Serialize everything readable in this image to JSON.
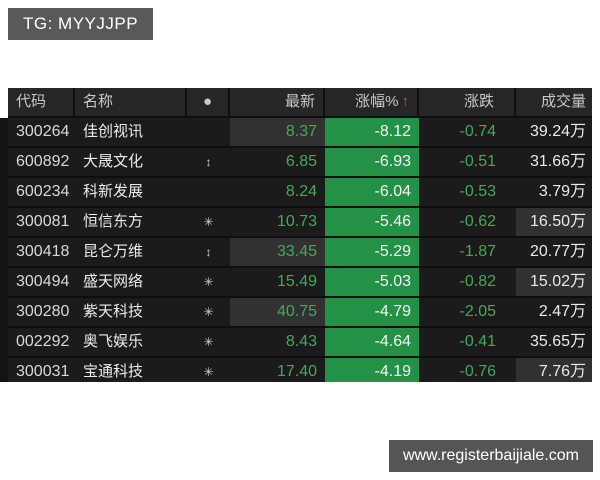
{
  "overlays": {
    "tg_label": "TG: MYYJJPP",
    "watermark": "www.registerbaijiale.com"
  },
  "colors": {
    "page_bg": "#ffffff",
    "table_bg": "#1b1b1b",
    "header_bg": "#262626",
    "row_separator": "#0d0d0d",
    "highlight_cell_bg": "#313131",
    "pct_down_bg": "#239246",
    "down_text_green": "#43a95c",
    "white_text": "#ececec",
    "header_text": "#c9c9c9",
    "sort_arrow_color": "#d4512a",
    "tg_box_bg": "#59595b",
    "watermark_bg": "#555557"
  },
  "table": {
    "sort_arrow": "↑",
    "columns": [
      {
        "key": "code",
        "label": "代码"
      },
      {
        "key": "name",
        "label": "名称"
      },
      {
        "key": "flag",
        "label": "●"
      },
      {
        "key": "last",
        "label": "最新"
      },
      {
        "key": "pct",
        "label": "涨幅%"
      },
      {
        "key": "chg",
        "label": "涨跌"
      },
      {
        "key": "vol",
        "label": "成交量"
      }
    ],
    "rows": [
      {
        "code": "300264",
        "name": "佳创视讯",
        "flag": "",
        "last": "8.37",
        "pct": "-8.12",
        "chg": "-0.74",
        "vol": "39.24万",
        "last_hl": true,
        "vol_hl": false
      },
      {
        "code": "600892",
        "name": "大晟文化",
        "flag": "↕",
        "last": "6.85",
        "pct": "-6.93",
        "chg": "-0.51",
        "vol": "31.66万",
        "last_hl": false,
        "vol_hl": false
      },
      {
        "code": "600234",
        "name": "科新发展",
        "flag": "",
        "last": "8.24",
        "pct": "-6.04",
        "chg": "-0.53",
        "vol": "3.79万",
        "last_hl": false,
        "vol_hl": false
      },
      {
        "code": "300081",
        "name": "恒信东方",
        "flag": "✳",
        "last": "10.73",
        "pct": "-5.46",
        "chg": "-0.62",
        "vol": "16.50万",
        "last_hl": false,
        "vol_hl": true
      },
      {
        "code": "300418",
        "name": "昆仑万维",
        "flag": "↕",
        "last": "33.45",
        "pct": "-5.29",
        "chg": "-1.87",
        "vol": "20.77万",
        "last_hl": true,
        "vol_hl": false
      },
      {
        "code": "300494",
        "name": "盛天网络",
        "flag": "✳",
        "last": "15.49",
        "pct": "-5.03",
        "chg": "-0.82",
        "vol": "15.02万",
        "last_hl": false,
        "vol_hl": true
      },
      {
        "code": "300280",
        "name": "紫天科技",
        "flag": "✳",
        "last": "40.75",
        "pct": "-4.79",
        "chg": "-2.05",
        "vol": "2.47万",
        "last_hl": true,
        "vol_hl": false
      },
      {
        "code": "002292",
        "name": "奥飞娱乐",
        "flag": "✳",
        "last": "8.43",
        "pct": "-4.64",
        "chg": "-0.41",
        "vol": "35.65万",
        "last_hl": false,
        "vol_hl": false
      },
      {
        "code": "300031",
        "name": "宝通科技",
        "flag": "✳",
        "last": "17.40",
        "pct": "-4.19",
        "chg": "-0.76",
        "vol": "7.76万",
        "last_hl": false,
        "vol_hl": true
      }
    ]
  }
}
